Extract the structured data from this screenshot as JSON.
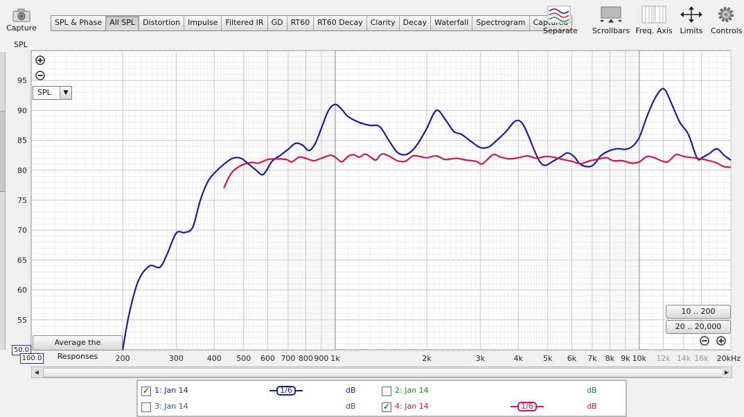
{
  "toolbar": {
    "capture_label": "Capture",
    "tabs": [
      {
        "label": "SPL & Phase",
        "active": false
      },
      {
        "label": "All SPL",
        "active": true
      },
      {
        "label": "Distortion",
        "active": false
      },
      {
        "label": "Impulse",
        "active": false
      },
      {
        "label": "Filtered IR",
        "active": false
      },
      {
        "label": "GD",
        "active": false
      },
      {
        "label": "RT60",
        "active": false
      },
      {
        "label": "RT60 Decay",
        "active": false
      },
      {
        "label": "Clarity",
        "active": false
      },
      {
        "label": "Decay",
        "active": false
      },
      {
        "label": "Waterfall",
        "active": false
      },
      {
        "label": "Spectrogram",
        "active": false
      },
      {
        "label": "Captured",
        "active": false
      }
    ],
    "tools": {
      "separate": "Separate",
      "scrollbars": "Scrollbars",
      "freq_axis": "Freq. Axis",
      "limits": "Limits",
      "controls": "Controls"
    }
  },
  "plot": {
    "y_axis_label": "SPL",
    "measure_select": "SPL",
    "average_button": "Average the Responses",
    "range_buttons": [
      "10 .. 200",
      "20 .. 20,000"
    ],
    "y_min_field": "50.0",
    "x_min_field": "100.0"
  },
  "chart_data": {
    "type": "line",
    "x_scale": "log",
    "xlim": [
      100,
      20000
    ],
    "ylim": [
      50,
      100
    ],
    "y_ticks": [
      55,
      60,
      65,
      70,
      75,
      80,
      85,
      90,
      95
    ],
    "x_tick_labels": [
      {
        "f": 200,
        "label": "200"
      },
      {
        "f": 300,
        "label": "300"
      },
      {
        "f": 400,
        "label": "400"
      },
      {
        "f": 500,
        "label": "500"
      },
      {
        "f": 600,
        "label": "600"
      },
      {
        "f": 700,
        "label": "700"
      },
      {
        "f": 800,
        "label": "800"
      },
      {
        "f": 900,
        "label": "900"
      },
      {
        "f": 1000,
        "label": "1k"
      },
      {
        "f": 2000,
        "label": "2k"
      },
      {
        "f": 3000,
        "label": "3k"
      },
      {
        "f": 4000,
        "label": "4k"
      },
      {
        "f": 5000,
        "label": "5k"
      },
      {
        "f": 6000,
        "label": "6k"
      },
      {
        "f": 7000,
        "label": "7k"
      },
      {
        "f": 8000,
        "label": "8k"
      },
      {
        "f": 9000,
        "label": "9k"
      },
      {
        "f": 10000,
        "label": "10k"
      },
      {
        "f": 12000,
        "label": "12k",
        "faded": true
      },
      {
        "f": 14000,
        "label": "14k",
        "faded": true
      },
      {
        "f": 16000,
        "label": "16k",
        "faded": true
      },
      {
        "f": 20000,
        "label": "20kHz"
      }
    ],
    "series": [
      {
        "name": "1: Jan 14",
        "color": "#1a1a9c",
        "points": [
          [
            200,
            50
          ],
          [
            210,
            56
          ],
          [
            225,
            61.5
          ],
          [
            245,
            64
          ],
          [
            265,
            63.8
          ],
          [
            280,
            66
          ],
          [
            300,
            69.5
          ],
          [
            320,
            69.6
          ],
          [
            340,
            70.5
          ],
          [
            360,
            75
          ],
          [
            380,
            78
          ],
          [
            400,
            79.5
          ],
          [
            430,
            81
          ],
          [
            460,
            82
          ],
          [
            490,
            82
          ],
          [
            520,
            81
          ],
          [
            550,
            80
          ],
          [
            580,
            79.3
          ],
          [
            620,
            81.5
          ],
          [
            660,
            82.5
          ],
          [
            700,
            83.5
          ],
          [
            740,
            84.5
          ],
          [
            780,
            84.2
          ],
          [
            820,
            83.3
          ],
          [
            860,
            84.5
          ],
          [
            900,
            87
          ],
          [
            950,
            90
          ],
          [
            1000,
            91
          ],
          [
            1050,
            90.2
          ],
          [
            1100,
            89
          ],
          [
            1200,
            88
          ],
          [
            1300,
            87.5
          ],
          [
            1400,
            87.3
          ],
          [
            1500,
            85
          ],
          [
            1600,
            83
          ],
          [
            1700,
            82.6
          ],
          [
            1800,
            83.4
          ],
          [
            1900,
            85
          ],
          [
            2000,
            87
          ],
          [
            2150,
            90
          ],
          [
            2300,
            88.5
          ],
          [
            2450,
            86.5
          ],
          [
            2600,
            86
          ],
          [
            2800,
            84.8
          ],
          [
            3000,
            83.8
          ],
          [
            3200,
            83.9
          ],
          [
            3400,
            85
          ],
          [
            3650,
            86.5
          ],
          [
            3900,
            88.2
          ],
          [
            4100,
            88
          ],
          [
            4300,
            86
          ],
          [
            4500,
            83.5
          ],
          [
            4700,
            81.5
          ],
          [
            4900,
            80.8
          ],
          [
            5200,
            81.5
          ],
          [
            5500,
            82.2
          ],
          [
            5800,
            82.9
          ],
          [
            6100,
            82.3
          ],
          [
            6400,
            81
          ],
          [
            6800,
            80.6
          ],
          [
            7100,
            81
          ],
          [
            7500,
            82.5
          ],
          [
            8000,
            83.3
          ],
          [
            8500,
            83.6
          ],
          [
            9000,
            83.5
          ],
          [
            9500,
            84
          ],
          [
            10000,
            85.5
          ],
          [
            10600,
            89
          ],
          [
            11200,
            91.8
          ],
          [
            11800,
            93.5
          ],
          [
            12200,
            93.3
          ],
          [
            12800,
            91
          ],
          [
            13600,
            88
          ],
          [
            14500,
            86
          ],
          [
            15500,
            82
          ],
          [
            16200,
            82.2
          ],
          [
            17000,
            82.8
          ],
          [
            18000,
            83.6
          ],
          [
            19000,
            82.5
          ],
          [
            20000,
            81.7
          ]
        ]
      },
      {
        "name": "4: Jan 14",
        "color": "#d41450",
        "points": [
          [
            430,
            77
          ],
          [
            455,
            79.5
          ],
          [
            490,
            80.8
          ],
          [
            530,
            81.3
          ],
          [
            560,
            81.2
          ],
          [
            600,
            81.8
          ],
          [
            640,
            81.9
          ],
          [
            690,
            81.8
          ],
          [
            720,
            81.4
          ],
          [
            760,
            82.2
          ],
          [
            800,
            82
          ],
          [
            850,
            81.6
          ],
          [
            900,
            82
          ],
          [
            960,
            82.5
          ],
          [
            1000,
            82.2
          ],
          [
            1050,
            81.4
          ],
          [
            1100,
            82.3
          ],
          [
            1150,
            82.6
          ],
          [
            1200,
            82.2
          ],
          [
            1250,
            82.7
          ],
          [
            1300,
            82.3
          ],
          [
            1360,
            81.7
          ],
          [
            1420,
            82.7
          ],
          [
            1500,
            82.4
          ],
          [
            1600,
            81.6
          ],
          [
            1700,
            81.5
          ],
          [
            1800,
            82.4
          ],
          [
            1900,
            82.3
          ],
          [
            2000,
            82.1
          ],
          [
            2150,
            82.4
          ],
          [
            2300,
            81.8
          ],
          [
            2500,
            82
          ],
          [
            2700,
            81.7
          ],
          [
            2900,
            81.5
          ],
          [
            3050,
            81.1
          ],
          [
            3300,
            82.6
          ],
          [
            3500,
            82.2
          ],
          [
            3750,
            81.9
          ],
          [
            4000,
            82.1
          ],
          [
            4300,
            82.4
          ],
          [
            4600,
            82
          ],
          [
            4900,
            82.3
          ],
          [
            5200,
            82.2
          ],
          [
            5600,
            81.8
          ],
          [
            6000,
            81.5
          ],
          [
            6400,
            81.1
          ],
          [
            6900,
            81.6
          ],
          [
            7400,
            81.9
          ],
          [
            7800,
            82.1
          ],
          [
            8200,
            81.6
          ],
          [
            8800,
            81.6
          ],
          [
            9400,
            81.2
          ],
          [
            10000,
            81.4
          ],
          [
            10600,
            82.3
          ],
          [
            11200,
            82.1
          ],
          [
            11800,
            81.6
          ],
          [
            12400,
            81.4
          ],
          [
            13200,
            82.6
          ],
          [
            14000,
            82.3
          ],
          [
            15000,
            82.1
          ],
          [
            16000,
            81.9
          ],
          [
            17000,
            81.6
          ],
          [
            18000,
            81.2
          ],
          [
            19000,
            80.6
          ],
          [
            20000,
            80.5
          ]
        ]
      }
    ]
  },
  "legend": {
    "entries": [
      {
        "index": 1,
        "label": "1: Jan 14",
        "checked": true,
        "color": "#1a1a9c",
        "smoothing": "1/6",
        "unit": "dB"
      },
      {
        "index": 2,
        "label": "2: Jan 14",
        "checked": false,
        "color": "#1a8a1a",
        "smoothing": "",
        "unit": "dB"
      },
      {
        "index": 3,
        "label": "3: Jan 14",
        "checked": false,
        "color": "#2a5a9c",
        "smoothing": "",
        "unit": "dB"
      },
      {
        "index": 4,
        "label": "4: Jan 14",
        "checked": true,
        "color": "#d41450",
        "smoothing": "1/6",
        "unit": "dB"
      }
    ]
  }
}
